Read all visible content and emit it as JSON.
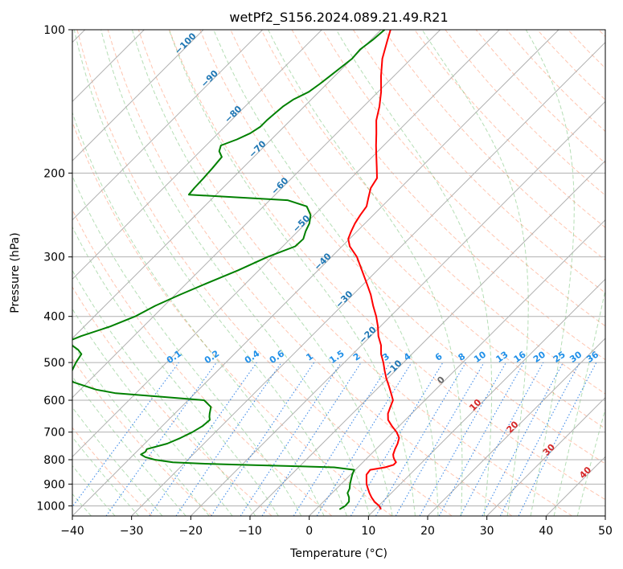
{
  "chart_data": {
    "type": "line",
    "title": "wetPf2_S156.2024.089.21.49.R21",
    "xlabel": "Temperature (°C)",
    "ylabel": "Pressure (hPa)",
    "xlim": [
      -40,
      50
    ],
    "ylim": [
      1050,
      100
    ],
    "y_scale": "log",
    "skew": "45 degrees",
    "grid": true,
    "x_ticks": [
      -40,
      -30,
      -20,
      -10,
      0,
      10,
      20,
      30,
      40,
      50
    ],
    "y_ticks": [
      100,
      200,
      300,
      400,
      500,
      600,
      700,
      800,
      900,
      1000
    ],
    "x_tick_labels": [
      "−40",
      "−30",
      "−20",
      "−10",
      "0",
      "10",
      "20",
      "30",
      "40",
      "50"
    ],
    "y_tick_labels": [
      "100",
      "200",
      "300",
      "400",
      "500",
      "600",
      "700",
      "800",
      "900",
      "1000"
    ],
    "series": [
      {
        "color": "#ff0000",
        "pressure": [
          1017,
          1000,
          980,
          960,
          940,
          920,
          900,
          880,
          860,
          840,
          830,
          820,
          810,
          800,
          790,
          780,
          760,
          740,
          720,
          700,
          680,
          660,
          640,
          620,
          600,
          580,
          560,
          540,
          520,
          500,
          480,
          460,
          440,
          420,
          400,
          380,
          360,
          340,
          320,
          300,
          285,
          275,
          265,
          255,
          245,
          235,
          225,
          215,
          205,
          195,
          185,
          175,
          165,
          155,
          145,
          135,
          125,
          115,
          105,
          100
        ],
        "temperature": [
          11.0,
          10.1,
          8.6,
          7.4,
          6.3,
          5.3,
          4.3,
          3.5,
          2.7,
          2.5,
          4.6,
          5.6,
          5.6,
          4.9,
          4.3,
          3.8,
          3.2,
          2.7,
          2.0,
          0.6,
          -1.2,
          -2.9,
          -4.0,
          -4.7,
          -5.4,
          -6.9,
          -8.5,
          -10.2,
          -11.8,
          -13.4,
          -15.2,
          -16.7,
          -18.7,
          -20.4,
          -22.4,
          -24.7,
          -27.0,
          -29.7,
          -32.6,
          -35.7,
          -38.7,
          -40.2,
          -41.0,
          -41.7,
          -42.2,
          -42.6,
          -43.8,
          -45.0,
          -45.6,
          -47.4,
          -49.3,
          -51.3,
          -53.3,
          -55.5,
          -57.3,
          -59.5,
          -62.2,
          -64.9,
          -67.2,
          -68.4
        ]
      },
      {
        "color": "#008000",
        "pressure": [
          1017,
          1000,
          980,
          960,
          940,
          920,
          900,
          880,
          860,
          840,
          830,
          825,
          820,
          815,
          810,
          800,
          790,
          780,
          770,
          760,
          740,
          720,
          700,
          680,
          660,
          650,
          640,
          620,
          600,
          590,
          580,
          570,
          560,
          550,
          540,
          520,
          500,
          480,
          470,
          460,
          450,
          440,
          420,
          400,
          380,
          360,
          340,
          320,
          300,
          285,
          275,
          265,
          255,
          245,
          235,
          228,
          222,
          215,
          205,
          195,
          185,
          180,
          175,
          170,
          165,
          160,
          155,
          150,
          145,
          140,
          135,
          130,
          125,
          120,
          115,
          110,
          105,
          100
        ],
        "dewpoint": [
          4.0,
          4.4,
          4.3,
          3.6,
          2.6,
          2.2,
          1.5,
          0.9,
          0.3,
          -0.2,
          -4.0,
          -11.9,
          -19.9,
          -27.3,
          -32.1,
          -35.6,
          -37.6,
          -38.8,
          -38.5,
          -38.7,
          -36.2,
          -34.9,
          -33.9,
          -33.2,
          -33.0,
          -33.6,
          -34.1,
          -35.0,
          -37.3,
          -45.0,
          -53.4,
          -57.3,
          -59.8,
          -62.4,
          -63.7,
          -64.6,
          -65.3,
          -65.8,
          -67.1,
          -68.9,
          -70.1,
          -68.9,
          -65.6,
          -63.1,
          -61.5,
          -59.2,
          -56.5,
          -53.5,
          -50.8,
          -47.9,
          -47.8,
          -48.7,
          -49.4,
          -50.6,
          -52.7,
          -57.0,
          -74.6,
          -74.8,
          -74.9,
          -75.1,
          -75.4,
          -76.8,
          -77.5,
          -75.8,
          -74.6,
          -74.0,
          -74.0,
          -73.8,
          -73.6,
          -73.0,
          -71.7,
          -71.2,
          -70.8,
          -70.4,
          -70.0,
          -70.2,
          -69.7,
          -69.4
        ]
      }
    ],
    "dry_adiabat_labels": [
      "−100",
      "−90",
      "−80",
      "−70",
      "−60",
      "−50",
      "−40",
      "−30",
      "−20",
      "−10"
    ],
    "moist_adiabat_labels": [
      "0",
      "10",
      "20",
      "30",
      "40"
    ],
    "mixing_ratio_labels": [
      "0.1",
      "0.2",
      "0.4",
      "0.6",
      "1",
      "1.5",
      "2",
      "3",
      "4",
      "6",
      "8",
      "10",
      "13",
      "16",
      "20",
      "25",
      "30",
      "36"
    ]
  }
}
